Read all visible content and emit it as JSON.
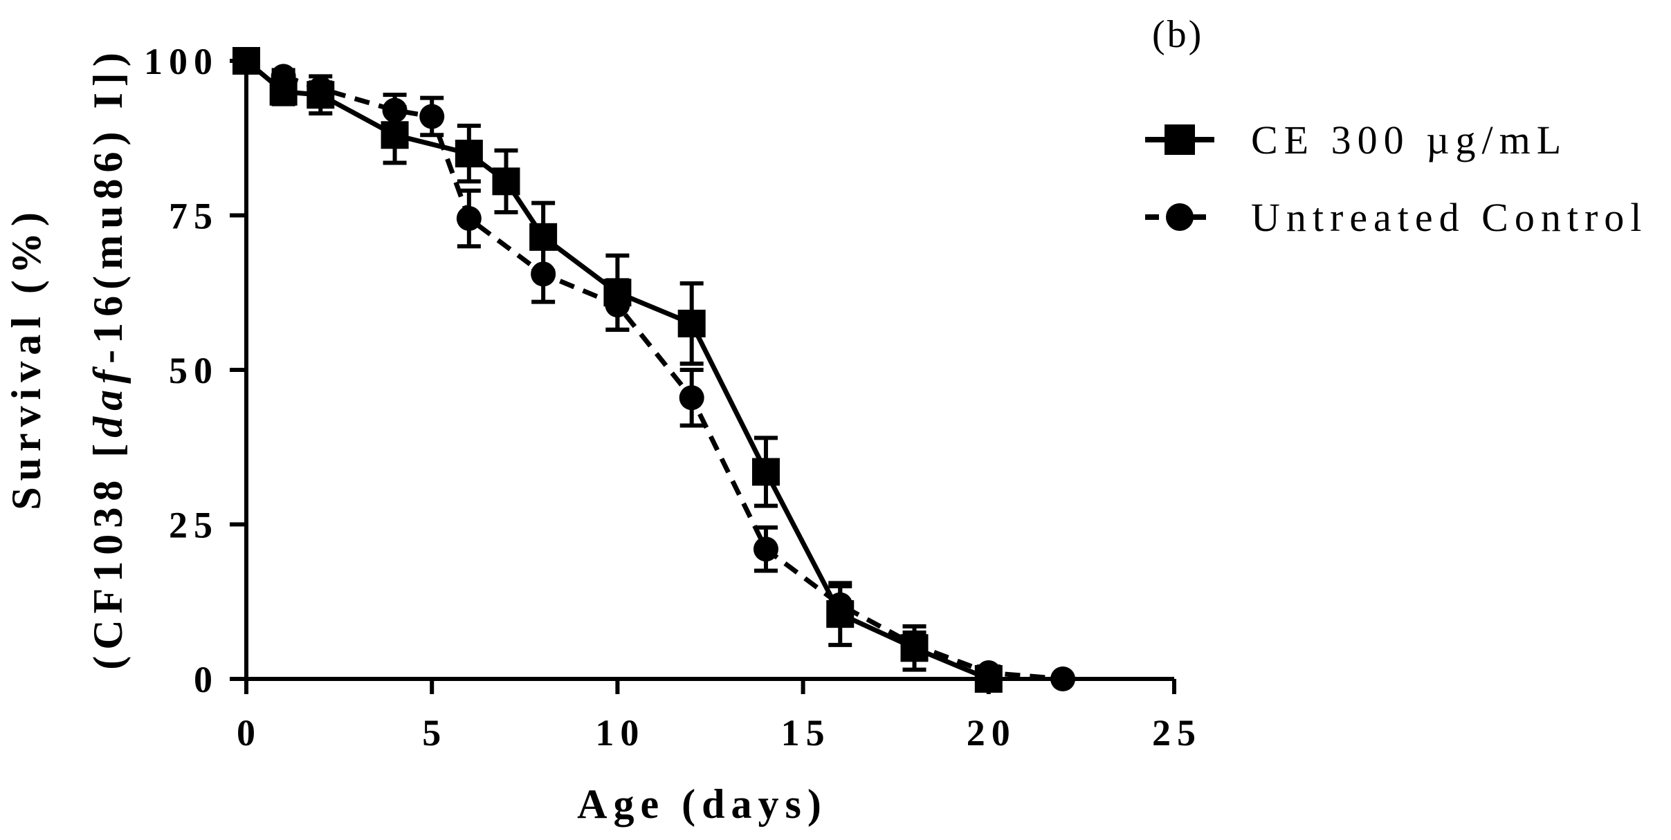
{
  "panel_label": "(b)",
  "chart_data": {
    "type": "line",
    "title": "",
    "xlabel": "Age (days)",
    "ylabel_line1": "Survival (%)",
    "ylabel_line2_prefix": "(CF1038 [",
    "ylabel_line2_italic": "daf",
    "ylabel_line2_suffix": "-16(mu86) I])",
    "xlim": [
      0,
      25
    ],
    "ylim": [
      0,
      100
    ],
    "x_ticks": [
      0,
      5,
      10,
      15,
      20,
      25
    ],
    "x_tick_labels": [
      "0",
      "5",
      "10",
      "15",
      "20",
      "25"
    ],
    "y_ticks": [
      0,
      25,
      50,
      75,
      100
    ],
    "y_tick_labels": [
      "0",
      "25",
      "50",
      "75",
      "100"
    ],
    "legend_position": "top-right",
    "series": [
      {
        "name": "CE 300 µg/mL",
        "marker": "square",
        "line": "solid",
        "x": [
          0,
          1,
          2,
          4,
          6,
          7,
          8,
          10,
          12,
          14,
          16,
          18,
          20
        ],
        "y": [
          100,
          95,
          94.5,
          88,
          85,
          80.5,
          71.5,
          62.5,
          57.5,
          33.5,
          10.5,
          5,
          0
        ],
        "err": [
          0,
          2,
          3,
          4.5,
          4.5,
          5,
          5.5,
          6,
          6.5,
          5.5,
          5,
          3.5,
          0
        ]
      },
      {
        "name": "Untreated Control",
        "marker": "circle",
        "line": "dashed",
        "x": [
          1,
          2,
          4,
          5,
          6,
          8,
          10,
          12,
          14,
          16,
          18,
          20,
          22
        ],
        "y": [
          97.5,
          95.5,
          92,
          91,
          74.5,
          65.5,
          60.5,
          45.5,
          21,
          12,
          5.5,
          1,
          0
        ],
        "err": [
          1,
          1,
          2.5,
          3,
          4.5,
          4.5,
          4,
          4.5,
          3.5,
          3,
          2,
          1,
          0
        ]
      }
    ]
  }
}
